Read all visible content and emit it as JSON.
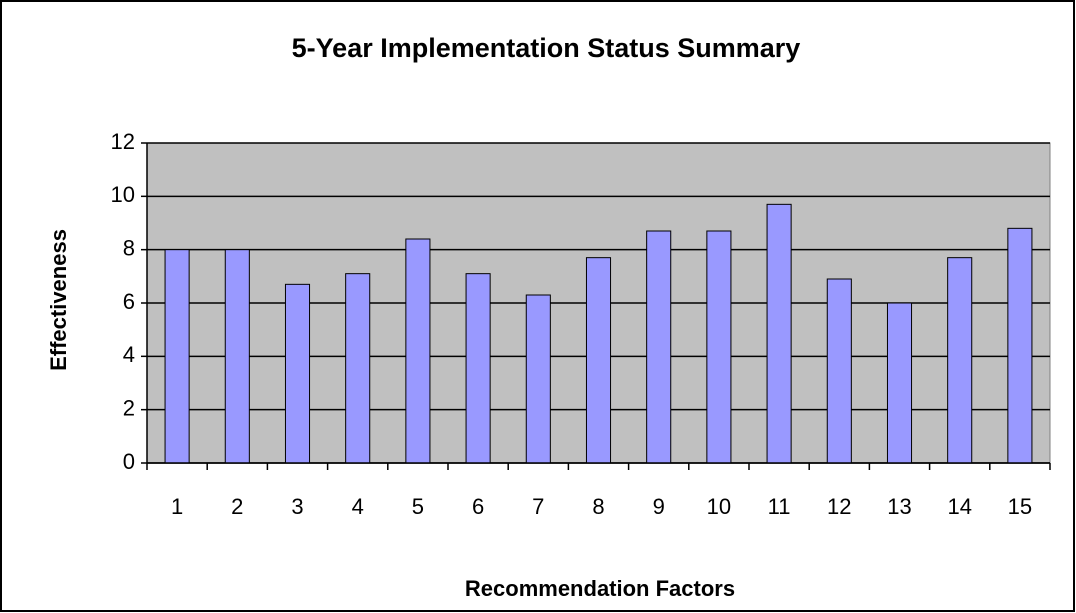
{
  "chart_data": {
    "type": "bar",
    "title": "5-Year Implementation Status Summary",
    "x_label": "Recommendation Factors",
    "y_label": "Effectiveness",
    "categories": [
      "1",
      "2",
      "3",
      "4",
      "5",
      "6",
      "7",
      "8",
      "9",
      "10",
      "11",
      "12",
      "13",
      "14",
      "15"
    ],
    "values": [
      8,
      8,
      6.7,
      7.1,
      8.4,
      7.1,
      6.3,
      7.7,
      8.7,
      8.7,
      9.7,
      6.9,
      6.0,
      7.7,
      8.8
    ],
    "color": "#9999ff",
    "plot_background": "#c0c0c0",
    "ylim": [
      0,
      12
    ],
    "yticks": [
      0,
      2,
      4,
      6,
      8,
      10,
      12
    ],
    "grid": true
  }
}
